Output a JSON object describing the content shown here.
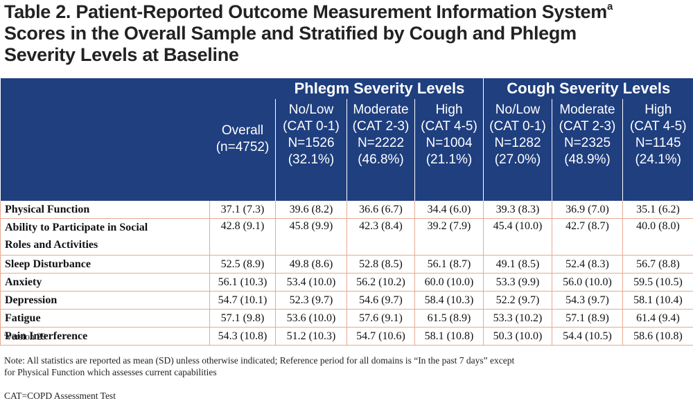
{
  "title": {
    "line1": "Table 2. Patient-Reported Outcome Measurement Information System",
    "sup": "a",
    "line2": "Scores in the Overall Sample and Stratified by Cough and Phlegm",
    "line3": "Severity Levels at Baseline"
  },
  "header": {
    "groups": [
      "Phlegm Severity Levels",
      "Cough Severity Levels"
    ],
    "columns": [
      {
        "lines": [
          "Overall",
          "(n=4752)"
        ]
      },
      {
        "lines": [
          "No/Low",
          "(CAT 0-1)",
          "N=1526",
          "(32.1%)"
        ]
      },
      {
        "lines": [
          "Moderate",
          "(CAT 2-3)",
          "N=2222",
          "(46.8%)"
        ]
      },
      {
        "lines": [
          "High",
          "(CAT 4-5)",
          "N=1004",
          "(21.1%)"
        ]
      },
      {
        "lines": [
          "No/Low",
          "(CAT 0-1)",
          "N=1282",
          "(27.0%)"
        ]
      },
      {
        "lines": [
          "Moderate",
          "(CAT 2-3)",
          "N=2325",
          "(48.9%)"
        ]
      },
      {
        "lines": [
          "High",
          "(CAT 4-5)",
          "N=1145",
          "(24.1%)"
        ]
      }
    ]
  },
  "rows": [
    {
      "label": [
        "Physical Function"
      ],
      "values": [
        "37.1 (7.3)",
        "39.6 (8.2)",
        "36.6 (6.7)",
        "34.4 (6.0)",
        "39.3 (8.3)",
        "36.9 (7.0)",
        "35.1 (6.2)"
      ]
    },
    {
      "label": [
        "Ability to Participate in Social",
        "Roles and Activities"
      ],
      "values": [
        "42.8 (9.1)",
        "45.8 (9.9)",
        "42.3 (8.4)",
        "39.2 (7.9)",
        "45.4 (10.0)",
        "42.7 (8.7)",
        "40.0 (8.0)"
      ]
    },
    {
      "label": [
        "Sleep Disturbance"
      ],
      "values": [
        "52.5 (8.9)",
        "49.8 (8.6)",
        "52.8 (8.5)",
        "56.1 (8.7)",
        "49.1 (8.5)",
        "52.4 (8.3)",
        "56.7 (8.8)"
      ]
    },
    {
      "label": [
        "Anxiety"
      ],
      "values": [
        "56.1 (10.3)",
        "53.4 (10.0)",
        "56.2 (10.2)",
        "60.0 (10.0)",
        "53.3 (9.9)",
        "56.0 (10.0)",
        "59.5 (10.5)"
      ]
    },
    {
      "label": [
        "Depression"
      ],
      "values": [
        "54.7 (10.1)",
        "52.3 (9.7)",
        "54.6 (9.7)",
        "58.4 (10.3)",
        "52.2 (9.7)",
        "54.3 (9.7)",
        "58.1 (10.4)"
      ]
    },
    {
      "label": [
        "Fatigue"
      ],
      "values": [
        "57.1 (9.8)",
        "53.6 (10.0)",
        "57.6 (9.1)",
        "61.5 (8.9)",
        "53.3 (10.2)",
        "57.1 (8.9)",
        "61.4 (9.4)"
      ]
    },
    {
      "label": [
        "Pain Interference"
      ],
      "values": [
        "54.3 (10.8)",
        "51.2 (10.3)",
        "54.7 (10.6)",
        "58.1 (10.8)",
        "50.3 (10.0)",
        "54.4 (10.5)",
        "58.6 (10.8)"
      ]
    }
  ],
  "notes": {
    "footnote_sup": "a",
    "footnote_text": "version 29",
    "note_line1": "Note: All statistics are reported as mean (SD) unless otherwise indicated; Reference period for all domains is “In the past 7 days” except",
    "note_line2": "for Physical Function which assesses current capabilities",
    "abbrev": "CAT=COPD Assessment Test"
  }
}
